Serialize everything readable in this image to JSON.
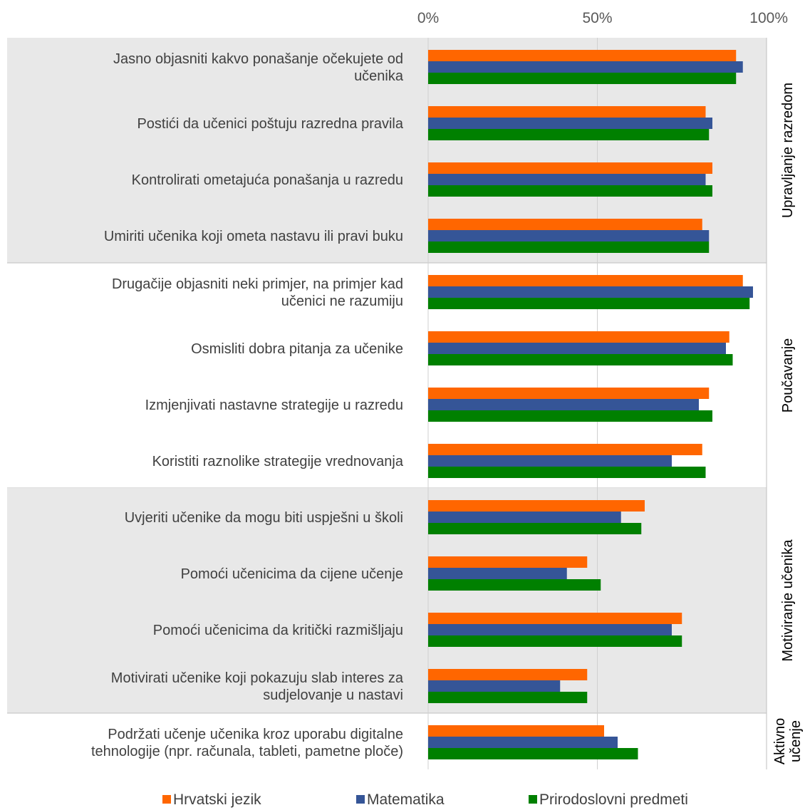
{
  "chart_data": {
    "type": "bar",
    "orientation": "horizontal",
    "x_ticks": [
      "0%",
      "50%",
      "100%"
    ],
    "xlim": [
      0,
      100
    ],
    "grid": true,
    "legend_position": "bottom",
    "categories": [
      "Jasno objasniti kakvo ponašanje očekujete od učenika",
      "Postići da učenici poštuju razredna pravila",
      "Kontrolirati ometajuća ponašanja u razredu",
      "Umiriti učenika koji ometa nastavu ili pravi buku",
      "Drugačije objasniti neki primjer, na primjer kad učenici ne razumiju",
      "Osmisliti dobra pitanja za učenike",
      "Izmjenjivati nastavne strategije u razredu",
      "Koristiti raznolike strategije vrednovanja",
      "Uvjeriti učenike da mogu biti uspješni u školi",
      "Pomoći učenicima da cijene učenje",
      "Pomoći učenicima da kritički razmišljaju",
      "Motivirati učenike koji pokazuju slab interes za sudjelovanje u nastavi",
      "Podržati učenje učenika kroz uporabu digitalne tehnologije (npr. računala, tableti, pametne ploče)"
    ],
    "category_lines": [
      [
        "Jasno objasniti kakvo ponašanje očekujete od",
        "učenika"
      ],
      [
        "Postići da učenici poštuju razredna pravila"
      ],
      [
        "Kontrolirati ometajuća ponašanja u razredu"
      ],
      [
        "Umiriti učenika koji ometa nastavu ili pravi buku"
      ],
      [
        "Drugačije objasniti neki primjer, na primjer kad",
        "učenici ne razumiju"
      ],
      [
        "Osmisliti dobra pitanja za učenike"
      ],
      [
        "Izmjenjivati nastavne strategije u razredu"
      ],
      [
        "Koristiti raznolike strategije vrednovanja"
      ],
      [
        "Uvjeriti učenike da mogu biti uspješni u školi"
      ],
      [
        "Pomoći učenicima da cijene učenje"
      ],
      [
        "Pomoći učenicima da kritički razmišljaju"
      ],
      [
        "Motivirati učenike koji pokazuju slab interes za",
        "sudjelovanje u nastavi"
      ],
      [
        "Podržati učenje učenika kroz uporabu digitalne",
        "tehnologije (npr. računala, tableti, pametne ploče)"
      ]
    ],
    "groups": [
      {
        "lines": [
          "Upravljanje razredom"
        ],
        "start": 0,
        "end": 3,
        "shaded": true
      },
      {
        "lines": [
          "Poučavanje"
        ],
        "start": 4,
        "end": 7,
        "shaded": false
      },
      {
        "lines": [
          "Motiviranje učenika"
        ],
        "start": 8,
        "end": 11,
        "shaded": true
      },
      {
        "lines": [
          "Aktivno",
          "učenje"
        ],
        "start": 12,
        "end": 12,
        "shaded": false
      }
    ],
    "series": [
      {
        "name": "Hrvatski jezik",
        "color": "#FF6600",
        "values": [
          91,
          82,
          84,
          81,
          93,
          89,
          83,
          81,
          64,
          47,
          75,
          47,
          52
        ]
      },
      {
        "name": "Matematika",
        "color": "#355597",
        "values": [
          93,
          84,
          82,
          83,
          96,
          88,
          80,
          72,
          57,
          41,
          72,
          39,
          56
        ]
      },
      {
        "name": "Prirodoslovni predmeti",
        "color": "#008000",
        "values": [
          91,
          83,
          84,
          83,
          95,
          90,
          84,
          82,
          63,
          51,
          75,
          47,
          62
        ]
      }
    ],
    "colors": {
      "shade": "#E8E8E8",
      "grid": "#D0D0D0",
      "separator": "#BFBFBF"
    }
  }
}
